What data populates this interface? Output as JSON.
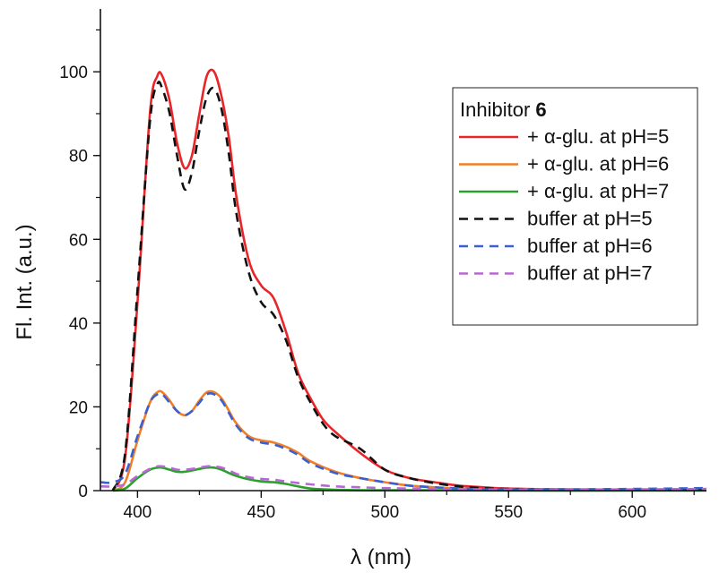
{
  "chart_data": {
    "type": "line",
    "xlabel": "λ (nm)",
    "ylabel": "Fl. Int. (a.u.)",
    "xlim": [
      385,
      630
    ],
    "ylim": [
      0,
      115
    ],
    "x_ticks": [
      400,
      450,
      500,
      550,
      600
    ],
    "y_ticks": [
      0,
      20,
      40,
      60,
      80,
      100
    ],
    "x_tick_labels": [
      "400",
      "450",
      "500",
      "550",
      "600"
    ],
    "y_tick_labels": [
      "0",
      "20",
      "40",
      "60",
      "80",
      "100"
    ],
    "grid": false,
    "legend": {
      "title": "Inhibitor",
      "title_bold": "6",
      "placement": "top-right"
    },
    "series": [
      {
        "name": "+ α-glu. at pH=5",
        "color": "#e8262a",
        "dash": "solid",
        "x": [
          390,
          395,
          400,
          405,
          408,
          410,
          413,
          416,
          419,
          422,
          425,
          428,
          431,
          434,
          437,
          440,
          445,
          450,
          455,
          460,
          465,
          470,
          475,
          480,
          490,
          500,
          510,
          520,
          530,
          540,
          550,
          570,
          600,
          630
        ],
        "y": [
          0,
          8,
          45,
          90,
          99,
          99,
          93,
          83,
          77,
          80,
          90,
          99,
          100,
          94,
          84,
          70,
          55,
          49,
          46,
          38,
          28,
          22,
          17,
          14,
          9,
          5,
          3,
          2,
          1.2,
          0.8,
          0.5,
          0.3,
          0.2,
          0.2
        ]
      },
      {
        "name": "+ α-glu. at pH=6",
        "color": "#f07e26",
        "dash": "solid",
        "x": [
          390,
          395,
          400,
          405,
          408,
          410,
          413,
          416,
          419,
          422,
          425,
          428,
          431,
          434,
          437,
          440,
          445,
          450,
          455,
          460,
          465,
          470,
          480,
          490,
          500,
          510,
          520,
          530,
          540,
          550,
          570,
          600,
          630
        ],
        "y": [
          0,
          2,
          12,
          21,
          23.5,
          23.5,
          21.5,
          19,
          18,
          19,
          21.5,
          23.5,
          23.5,
          22,
          19,
          16,
          13,
          12,
          11.5,
          10.5,
          9,
          7,
          4.5,
          3,
          2,
          1.2,
          0.8,
          0.5,
          0.3,
          0.2,
          0.1,
          0.1,
          0.1
        ]
      },
      {
        "name": "+ α-glu. at pH=7",
        "color": "#2ba02d",
        "dash": "solid",
        "x": [
          390,
          395,
          400,
          405,
          408,
          410,
          413,
          416,
          419,
          422,
          425,
          428,
          431,
          434,
          437,
          440,
          445,
          450,
          455,
          460,
          465,
          470,
          475,
          480,
          490,
          500,
          520,
          550,
          600,
          630
        ],
        "y": [
          0,
          0.5,
          3,
          5,
          5.5,
          5.5,
          5,
          4.5,
          4.5,
          4.8,
          5.2,
          5.5,
          5.5,
          5,
          4.2,
          3.5,
          2.7,
          2.2,
          2,
          1.6,
          1,
          0.5,
          0.3,
          0.2,
          0.1,
          0.1,
          0.1,
          0,
          0,
          0
        ]
      },
      {
        "name": "buffer at pH=5",
        "color": "#111111",
        "dash": "dashed",
        "x": [
          390,
          395,
          400,
          405,
          408,
          410,
          413,
          416,
          419,
          422,
          425,
          428,
          431,
          434,
          437,
          440,
          445,
          450,
          455,
          460,
          465,
          470,
          475,
          480,
          490,
          500,
          510,
          520,
          530,
          540,
          550,
          570,
          600,
          630
        ],
        "y": [
          0,
          9,
          48,
          88,
          97,
          96,
          90,
          80,
          72,
          76,
          86,
          94,
          96,
          91,
          80,
          66,
          52,
          45,
          42,
          36,
          27,
          21,
          16,
          13,
          10,
          5,
          3,
          1.8,
          1,
          0.6,
          0.4,
          0.3,
          0.2,
          0.2
        ]
      },
      {
        "name": "buffer at pH=6",
        "color": "#3a5fd0",
        "dash": "dashed",
        "x": [
          385,
          390,
          395,
          400,
          405,
          408,
          410,
          413,
          416,
          419,
          422,
          425,
          428,
          431,
          434,
          437,
          440,
          445,
          450,
          455,
          460,
          465,
          470,
          480,
          490,
          500,
          510,
          520,
          530,
          540,
          550,
          570,
          600,
          630
        ],
        "y": [
          2,
          2,
          4,
          13,
          21,
          23,
          23,
          21,
          19,
          18,
          19,
          21,
          23,
          23,
          21.5,
          18.5,
          15.5,
          12.5,
          11.5,
          11,
          10,
          8.5,
          6.5,
          4.2,
          3,
          2,
          1.2,
          0.8,
          0.5,
          0.3,
          0.3,
          0.3,
          0.4,
          0.6
        ]
      },
      {
        "name": "buffer at pH=7",
        "color": "#b867d6",
        "dash": "dashed",
        "x": [
          385,
          390,
          395,
          400,
          405,
          408,
          410,
          413,
          416,
          419,
          422,
          425,
          428,
          431,
          434,
          437,
          440,
          445,
          450,
          455,
          460,
          465,
          470,
          480,
          490,
          500,
          510,
          520,
          540,
          560,
          580,
          600,
          630
        ],
        "y": [
          1,
          1,
          1.5,
          3.5,
          5.2,
          5.8,
          5.8,
          5.5,
          5,
          5,
          5.2,
          5.5,
          5.8,
          5.8,
          5.5,
          4.8,
          4,
          3.2,
          2.8,
          2.6,
          2.2,
          1.8,
          1.5,
          1,
          0.8,
          0.6,
          0.5,
          0.4,
          0.3,
          0.3,
          0.3,
          0.3,
          0.4
        ]
      }
    ]
  }
}
